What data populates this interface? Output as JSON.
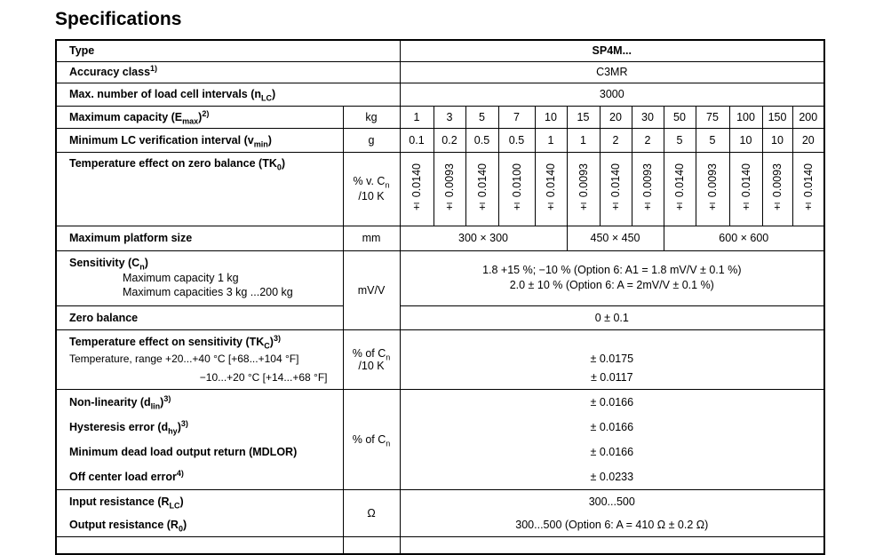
{
  "title": "Specifications",
  "type": {
    "label": "Type",
    "value": "SP4M..."
  },
  "accuracy": {
    "label": "Accuracy class",
    "sup": "1)",
    "value": "C3MR"
  },
  "intervals": {
    "label": "Max. number of load cell intervals (n",
    "sub": "LC",
    "close": ")",
    "value": "3000"
  },
  "capacity": {
    "label": "Maximum capacity (E",
    "sub": "max",
    "close": ")",
    "sup": "2)",
    "unit": "kg",
    "values": [
      "1",
      "3",
      "5",
      "7",
      "10",
      "15",
      "20",
      "30",
      "50",
      "75",
      "100",
      "150",
      "200"
    ]
  },
  "vmin": {
    "label": "Minimum LC verification interval (v",
    "sub": "min",
    "close": ")",
    "unit": "g",
    "values": [
      "0.1",
      "0.2",
      "0.5",
      "0.5",
      "1",
      "1",
      "2",
      "2",
      "5",
      "5",
      "10",
      "10",
      "20"
    ]
  },
  "tk0": {
    "label": "Temperature effect on zero balance (TK",
    "sub": "0",
    "close": ")",
    "unit_a": "% v. C",
    "unit_sub": "n",
    "unit_b": "/10 K",
    "values": [
      "± 0.0140",
      "± 0.0093",
      "± 0.0140",
      "± 0.0100",
      "± 0.0140",
      "± 0.0093",
      "± 0.0140",
      "± 0.0093",
      "± 0.0140",
      "± 0.0093",
      "± 0.0140",
      "± 0.0093",
      "± 0.0140"
    ]
  },
  "platform": {
    "label": "Maximum platform size",
    "unit": "mm",
    "values": [
      "300 × 300",
      "450 × 450",
      "600 × 600"
    ]
  },
  "sensitivity": {
    "label": "Sensitivity (C",
    "sub": "n",
    "close": ")",
    "line1": "Maximum capacity 1 kg",
    "line2": "Maximum capacities 3 kg ...200 kg",
    "unit": "mV/V",
    "value1": "1.8 +15 %; −10 % (Option 6: A1 = 1.8 mV/V ± 0.1 %)",
    "value2": "2.0 ± 10 % (Option 6: A = 2mV/V ± 0.1 %)"
  },
  "zero": {
    "label": "Zero balance",
    "value": "0 ± 0.1"
  },
  "tkc": {
    "label": "Temperature effect on sensitivity (TK",
    "sub": "C",
    "close": ")",
    "sup": "3)",
    "line1": "Temperature, range +20...+40 °C [+68...+104 °F]",
    "line2": "−10...+20 °C [+14...+68 °F]",
    "unit_a": "% of C",
    "unit_sub": "n",
    "unit_b": "/10 K",
    "value1": "± 0.0175",
    "value2": "± 0.0117"
  },
  "errors": {
    "unit_a": "% of C",
    "unit_sub": "n",
    "nonlin": {
      "label": "Non-linearity (d",
      "sub": "lin",
      "close": ")",
      "sup": "3)",
      "value": "± 0.0166"
    },
    "hyst": {
      "label": "Hysteresis error (d",
      "sub": "hy",
      "close": ")",
      "sup": "3)",
      "value": "± 0.0166"
    },
    "mdlor": {
      "label": "Minimum dead load output return (MDLOR)",
      "value": "± 0.0166"
    },
    "offcenter": {
      "label": "Off center load error",
      "sup": "4)",
      "value": "± 0.0233"
    }
  },
  "resistance": {
    "unit": "Ω",
    "input": {
      "label": "Input resistance (R",
      "sub": "LC",
      "close": ")",
      "value": "300...500"
    },
    "output": {
      "label": "Output resistance (R",
      "sub": "0",
      "close": ")",
      "value": "300...500 (Option 6: A = 410 Ω ± 0.2 Ω)"
    }
  }
}
